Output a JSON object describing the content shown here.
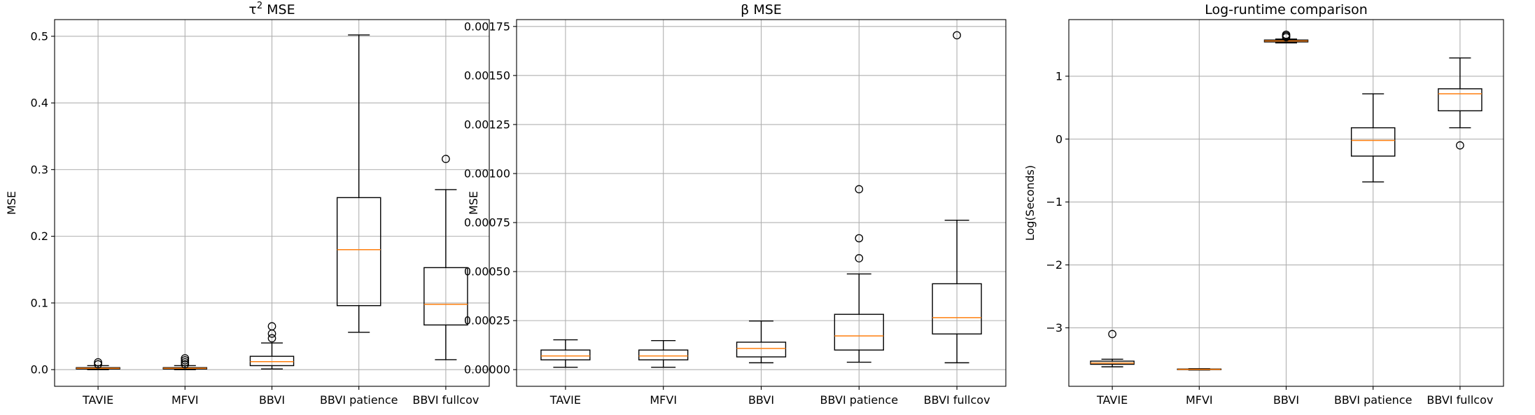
{
  "figure": {
    "colors": {
      "median": "#ff7f0e",
      "box": "#000000",
      "grid": "#b0b0b0",
      "background": "#ffffff"
    }
  },
  "chart_data": [
    {
      "type": "boxplot",
      "title_base": "τ",
      "title_sup": "2",
      "title_tail": " MSE",
      "title": "τ² MSE",
      "xlabel": "",
      "ylabel": "MSE",
      "grid": true,
      "categories": [
        "TAVIE",
        "MFVI",
        "BBVI",
        "BBVI patience",
        "BBVI fullcov"
      ],
      "ylim": [
        -0.025,
        0.525
      ],
      "yticks": [
        0.0,
        0.1,
        0.2,
        0.3,
        0.4,
        0.5
      ],
      "ytick_labels": [
        "0.0",
        "0.1",
        "0.2",
        "0.3",
        "0.4",
        "0.5"
      ],
      "boxes": [
        {
          "whislo": 0.0,
          "q1": 0.001,
          "med": 0.002,
          "q3": 0.003,
          "whishi": 0.006,
          "fliers": [
            0.008,
            0.011
          ]
        },
        {
          "whislo": 0.0,
          "q1": 0.001,
          "med": 0.002,
          "q3": 0.003,
          "whishi": 0.006,
          "fliers": [
            0.008,
            0.011,
            0.014,
            0.017
          ]
        },
        {
          "whislo": 0.001,
          "q1": 0.006,
          "med": 0.012,
          "q3": 0.02,
          "whishi": 0.04,
          "fliers": [
            0.047,
            0.054,
            0.065
          ]
        },
        {
          "whislo": 0.056,
          "q1": 0.096,
          "med": 0.18,
          "q3": 0.258,
          "whishi": 0.502,
          "fliers": []
        },
        {
          "whislo": 0.015,
          "q1": 0.067,
          "med": 0.098,
          "q3": 0.153,
          "whishi": 0.27,
          "fliers": [
            0.316
          ]
        }
      ]
    },
    {
      "type": "boxplot",
      "title_base": "β",
      "title_sup": "",
      "title_tail": " MSE",
      "title": "β MSE",
      "xlabel": "",
      "ylabel": "MSE",
      "grid": true,
      "categories": [
        "TAVIE",
        "MFVI",
        "BBVI",
        "BBVI patience",
        "BBVI fullcov"
      ],
      "ylim": [
        -8.5e-05,
        0.001785
      ],
      "yticks": [
        0.0,
        0.00025,
        0.0005,
        0.00075,
        0.001,
        0.00125,
        0.0015,
        0.00175
      ],
      "ytick_labels": [
        "0.00000",
        "0.00025",
        "0.00050",
        "0.00075",
        "0.00100",
        "0.00125",
        "0.00150",
        "0.00175"
      ],
      "boxes": [
        {
          "whislo": 1.2e-05,
          "q1": 5e-05,
          "med": 7e-05,
          "q3": 0.0001,
          "whishi": 0.000152,
          "fliers": []
        },
        {
          "whislo": 1.2e-05,
          "q1": 5e-05,
          "med": 7e-05,
          "q3": 0.0001,
          "whishi": 0.000148,
          "fliers": []
        },
        {
          "whislo": 3.5e-05,
          "q1": 6.5e-05,
          "med": 0.000108,
          "q3": 0.00014,
          "whishi": 0.000248,
          "fliers": []
        },
        {
          "whislo": 3.8e-05,
          "q1": 0.0001,
          "med": 0.000172,
          "q3": 0.000282,
          "whishi": 0.000488,
          "fliers": [
            0.000568,
            0.00067,
            0.00092
          ]
        },
        {
          "whislo": 3.5e-05,
          "q1": 0.000182,
          "med": 0.000265,
          "q3": 0.000438,
          "whishi": 0.000762,
          "fliers": [
            0.001705
          ]
        }
      ]
    },
    {
      "type": "boxplot",
      "title_base": "Log-runtime comparison",
      "title_sup": "",
      "title_tail": "",
      "title": "Log-runtime comparison",
      "xlabel": "",
      "ylabel": "Log(Seconds)",
      "grid": true,
      "categories": [
        "TAVIE",
        "MFVI",
        "BBVI",
        "BBVI patience",
        "BBVI fullcov"
      ],
      "ylim": [
        -3.93,
        1.9
      ],
      "yticks": [
        -3,
        -2,
        -1,
        0,
        1
      ],
      "ytick_labels": [
        "−3",
        "−2",
        "−1",
        "0",
        "1"
      ],
      "boxes": [
        {
          "whislo": -3.62,
          "q1": -3.58,
          "med": -3.56,
          "q3": -3.53,
          "whishi": -3.5,
          "fliers": [
            -3.1
          ]
        },
        {
          "whislo": -3.67,
          "q1": -3.665,
          "med": -3.66,
          "q3": -3.655,
          "whishi": -3.65,
          "fliers": []
        },
        {
          "whislo": 1.53,
          "q1": 1.545,
          "med": 1.56,
          "q3": 1.575,
          "whishi": 1.59,
          "fliers": [
            1.62,
            1.64,
            1.66
          ]
        },
        {
          "whislo": -0.68,
          "q1": -0.27,
          "med": -0.02,
          "q3": 0.18,
          "whishi": 0.72,
          "fliers": []
        },
        {
          "whislo": 0.18,
          "q1": 0.45,
          "med": 0.72,
          "q3": 0.8,
          "whishi": 1.29,
          "fliers": [
            -0.1
          ]
        }
      ]
    }
  ]
}
